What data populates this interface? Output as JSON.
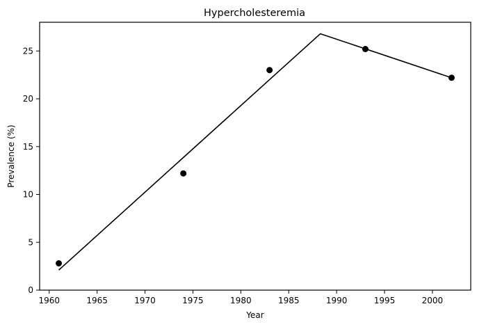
{
  "chart_data": {
    "type": "scatter",
    "title": "Hypercholesteremia",
    "xlabel": "Year",
    "ylabel": "Prevalence (%)",
    "xlim": [
      1959,
      2004
    ],
    "ylim": [
      0,
      28
    ],
    "xticks": [
      1960,
      1965,
      1970,
      1975,
      1980,
      1985,
      1990,
      1995,
      2000
    ],
    "yticks": [
      0,
      5,
      10,
      15,
      20,
      25
    ],
    "grid": false,
    "points": [
      {
        "x": 1961,
        "y": 2.8
      },
      {
        "x": 1974,
        "y": 12.2
      },
      {
        "x": 1983,
        "y": 23.0
      },
      {
        "x": 1993,
        "y": 25.2
      },
      {
        "x": 2002,
        "y": 22.2
      }
    ],
    "fit_line": [
      {
        "x": 1961,
        "y": 2.1
      },
      {
        "x": 1988.3,
        "y": 26.8
      },
      {
        "x": 2002,
        "y": 22.2
      }
    ],
    "colors": {
      "points": "#000000",
      "line": "#000000"
    }
  }
}
